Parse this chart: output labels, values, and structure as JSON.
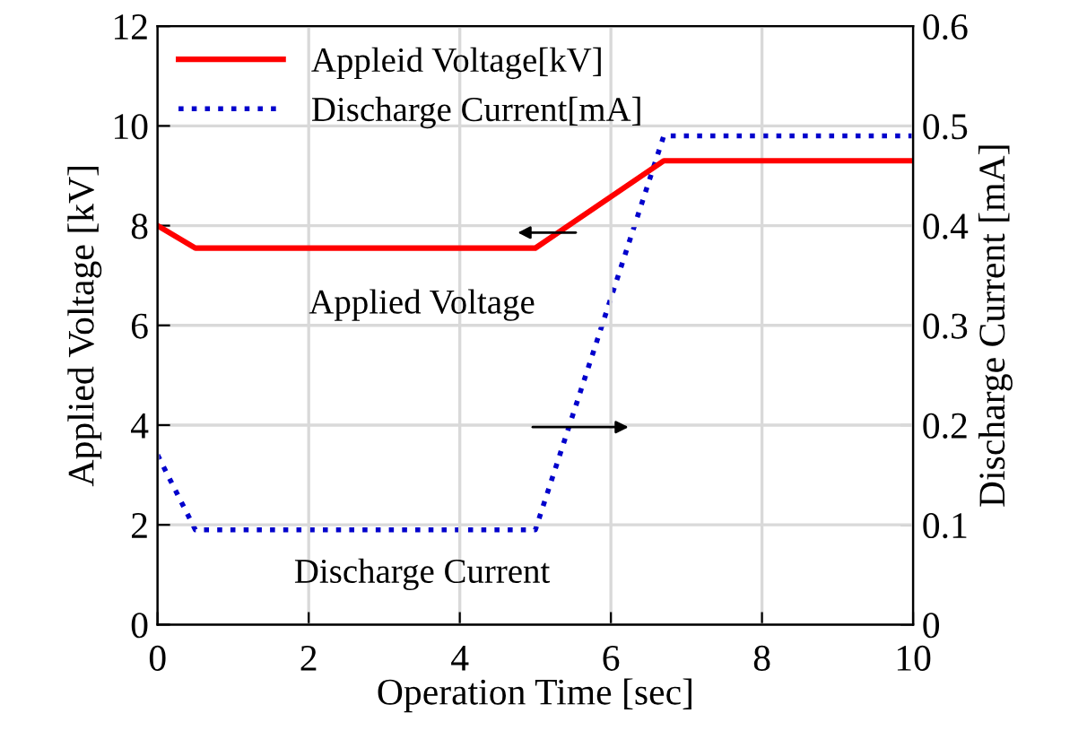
{
  "chart_data": {
    "type": "line",
    "xlabel": "Operation Time [sec]",
    "ylabel": "Applied Voltage [kV]",
    "y2label": "Discharge Current [mA]",
    "xlim": [
      0,
      10
    ],
    "xticks": [
      0,
      2,
      4,
      6,
      8,
      10
    ],
    "ylim": [
      0,
      12
    ],
    "yticks": [
      0,
      2,
      4,
      6,
      8,
      10,
      12
    ],
    "y2lim": [
      0,
      0.6
    ],
    "y2ticks": [
      0,
      0.1,
      0.2,
      0.3,
      0.4,
      0.5,
      0.6
    ],
    "grid": true,
    "legend": "top left",
    "marker": "none",
    "series": [
      {
        "name": "Appleid Voltage[kV]",
        "color": "#ff0000",
        "line_style": "solid",
        "x": [
          0,
          0.5,
          5,
          6.7,
          10
        ],
        "values": [
          8,
          7.55,
          7.55,
          9.3,
          9.3
        ]
      },
      {
        "name": "Discharge Current[mA]",
        "color": "#0000cc",
        "line_style": "dotted",
        "axis": "y2",
        "x": [
          0,
          0.5,
          5,
          6.7,
          10
        ],
        "values": [
          0.17,
          0.095,
          0.095,
          0.49,
          0.49
        ]
      }
    ],
    "annotations": [
      "Applied Voltage",
      "Discharge Current"
    ]
  }
}
